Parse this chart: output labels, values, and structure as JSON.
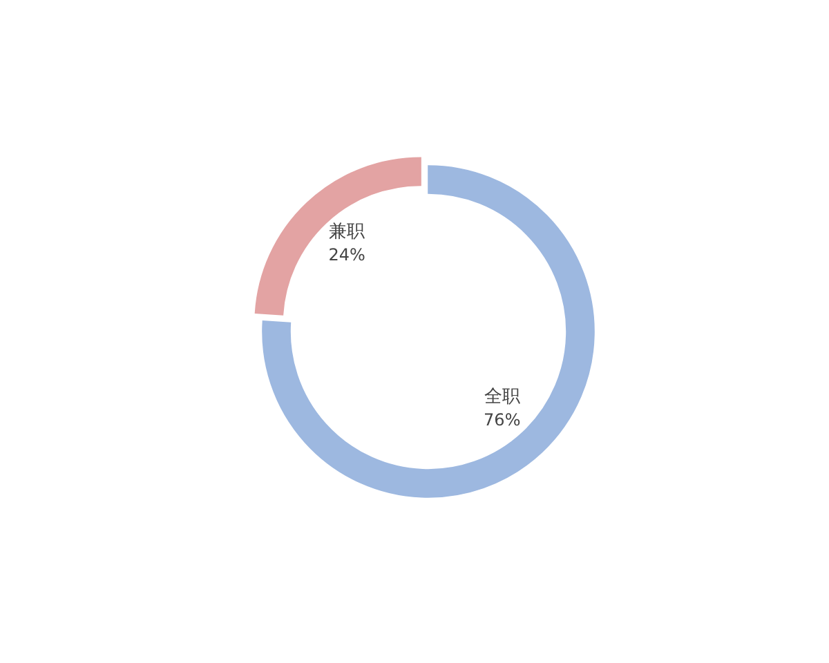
{
  "chart_data": {
    "type": "donut",
    "categories": [
      "全职",
      "兼职"
    ],
    "values": [
      76,
      24
    ],
    "colors": [
      "#9db8e0",
      "#e3a3a3"
    ],
    "value_labels": [
      "76%",
      "24%"
    ]
  }
}
